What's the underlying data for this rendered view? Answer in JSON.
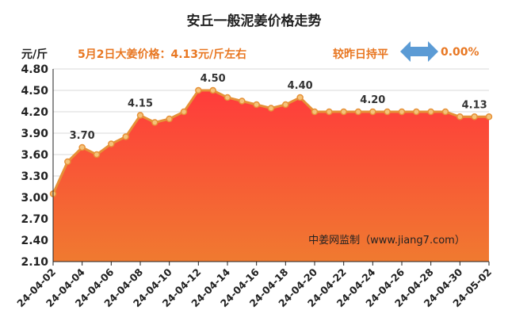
{
  "header": {
    "title": "安丘一般泥姜价格走势",
    "unit": "元/斤",
    "price_text": "5月2日大姜价格：4.13元/斤左右",
    "change_label": "较昨日持平",
    "change_value": "0.00%",
    "change_icon": "left-right-arrow-icon"
  },
  "watermark": "中姜网监制（www.jiang7.com）",
  "colors": {
    "accent": "#e87722",
    "area_top": "#ff3b3b",
    "area_bottom": "#f07a30",
    "arrow": "#5b9bd5"
  },
  "chart_data": {
    "type": "area",
    "title": "安丘一般泥姜价格走势",
    "ylabel": "元/斤",
    "xlabel": "",
    "ylim": [
      2.1,
      4.8
    ],
    "yticks": [
      "4.80",
      "4.50",
      "4.20",
      "3.90",
      "3.60",
      "3.30",
      "3.00",
      "2.70",
      "2.40",
      "2.10"
    ],
    "x": [
      "24-04-02",
      "24-04-03",
      "24-04-04",
      "24-04-05",
      "24-04-06",
      "24-04-07",
      "24-04-08",
      "24-04-09",
      "24-04-10",
      "24-04-11",
      "24-04-12",
      "24-04-13",
      "24-04-14",
      "24-04-15",
      "24-04-16",
      "24-04-17",
      "24-04-18",
      "24-04-19",
      "24-04-20",
      "24-04-21",
      "24-04-22",
      "24-04-23",
      "24-04-24",
      "24-04-25",
      "24-04-26",
      "24-04-27",
      "24-04-28",
      "24-04-29",
      "24-04-30",
      "24-05-01",
      "24-05-02"
    ],
    "xtick_labels": [
      "24-04-02",
      "24-04-04",
      "24-04-06",
      "24-04-08",
      "24-04-10",
      "24-04-12",
      "24-04-14",
      "24-04-16",
      "24-04-18",
      "24-04-20",
      "24-04-22",
      "24-04-24",
      "24-04-26",
      "24-04-28",
      "24-04-30",
      "24-05-02"
    ],
    "values": [
      3.05,
      3.5,
      3.7,
      3.6,
      3.75,
      3.85,
      4.15,
      4.05,
      4.1,
      4.2,
      4.5,
      4.5,
      4.4,
      4.35,
      4.3,
      4.25,
      4.3,
      4.4,
      4.2,
      4.2,
      4.2,
      4.2,
      4.2,
      4.2,
      4.2,
      4.2,
      4.2,
      4.2,
      4.13,
      4.13,
      4.13
    ],
    "data_labels": [
      {
        "index": 2,
        "text": "3.70"
      },
      {
        "index": 6,
        "text": "4.15"
      },
      {
        "index": 11,
        "text": "4.50"
      },
      {
        "index": 17,
        "text": "4.40"
      },
      {
        "index": 22,
        "text": "4.20"
      },
      {
        "index": 29,
        "text": "4.13"
      }
    ],
    "grid": true
  }
}
